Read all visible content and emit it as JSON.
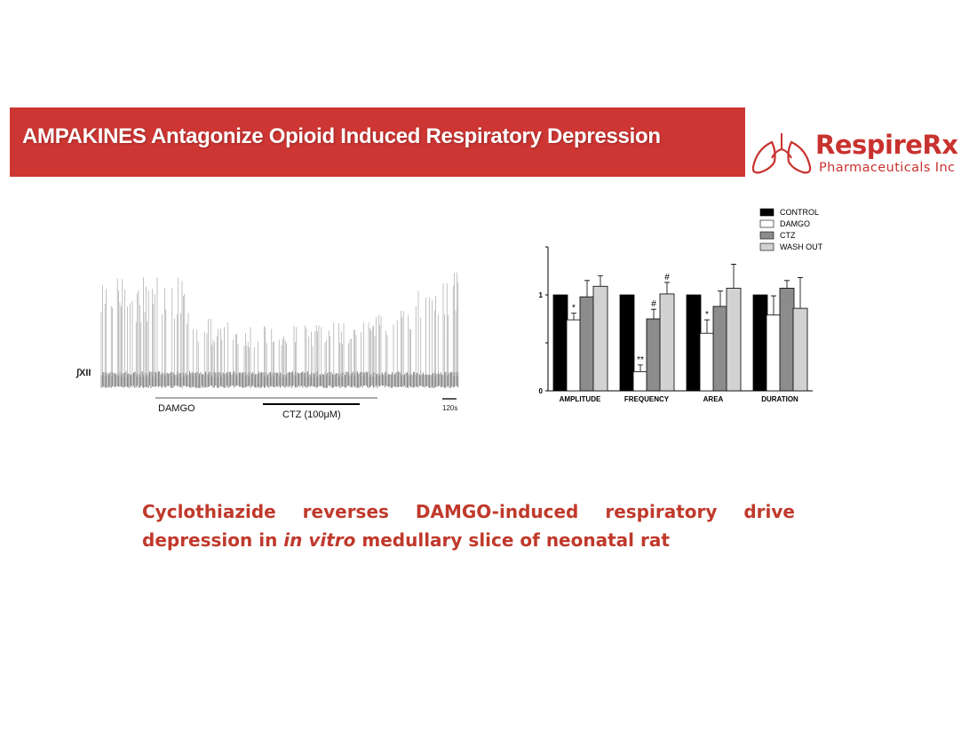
{
  "banner": {
    "title": "AMPAKINES Antagonize Opioid Induced Respiratory Depression"
  },
  "logo": {
    "name": "RespireRx",
    "subtitle": "Pharmaceuticals Inc"
  },
  "trace": {
    "signal_label": "∫XII",
    "drug1_label": "DAMGO",
    "drug2_label": "CTZ (100μM)",
    "scale_label": "120s"
  },
  "caption": {
    "line1": "Cyclothiazide reverses DAMGO-induced respiratory drive",
    "line2_a": "depression in ",
    "line2_em": "in vitro",
    "line2_b": " medullary slice of neonatal rat"
  },
  "colors": {
    "banner": "#cd3633",
    "brand": "#c8322e",
    "caption": "#c0392b"
  },
  "chart_data": {
    "type": "bar",
    "categories": [
      "AMPLITUDE",
      "FREQUENCY",
      "AREA",
      "DURATION"
    ],
    "series": [
      {
        "name": "CONTROL",
        "color": "#000000",
        "values": [
          1.0,
          1.0,
          1.0,
          1.0
        ],
        "errors": [
          0,
          0,
          0,
          0
        ]
      },
      {
        "name": "DAMGO",
        "color": "#ffffff",
        "values": [
          0.74,
          0.2,
          0.6,
          0.79
        ],
        "errors": [
          0.07,
          0.07,
          0.14,
          0.2
        ]
      },
      {
        "name": "CTZ",
        "color": "#8c8c8c",
        "values": [
          0.98,
          0.75,
          0.88,
          1.07
        ],
        "errors": [
          0.17,
          0.1,
          0.16,
          0.08
        ]
      },
      {
        "name": "WASH OUT",
        "color": "#d2d2d2",
        "values": [
          1.09,
          1.01,
          1.07,
          0.86
        ],
        "errors": [
          0.11,
          0.12,
          0.25,
          0.32
        ]
      }
    ],
    "annotations": [
      {
        "category": "AMPLITUDE",
        "series": "DAMGO",
        "text": "*"
      },
      {
        "category": "FREQUENCY",
        "series": "DAMGO",
        "text": "**"
      },
      {
        "category": "FREQUENCY",
        "series": "CTZ",
        "text": "#"
      },
      {
        "category": "FREQUENCY",
        "series": "WASH OUT",
        "text": "#"
      },
      {
        "category": "AREA",
        "series": "DAMGO",
        "text": "*"
      }
    ],
    "yticks": [
      "0",
      "1"
    ],
    "ylim": [
      0,
      1.5
    ],
    "legend_position": "top-right"
  }
}
